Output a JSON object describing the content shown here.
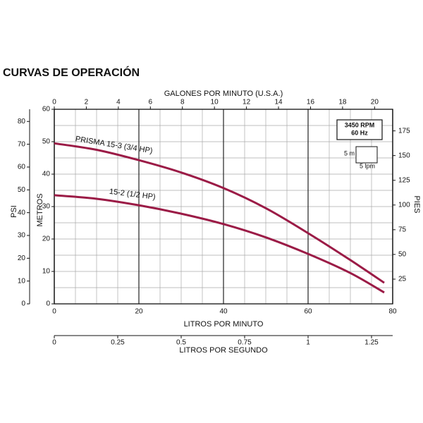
{
  "chart_data": {
    "type": "line",
    "title": "CURVAS DE OPERACIÓN",
    "xlabel": "LITROS POR MINUTO",
    "xlim": [
      0,
      80
    ],
    "xticks": [
      0,
      20,
      40,
      60,
      80
    ],
    "ylabel": "METROS",
    "ylim": [
      0,
      60
    ],
    "yticks": [
      0,
      10,
      20,
      30,
      40,
      50,
      60
    ],
    "grid": true,
    "gpm_axis": {
      "label": "GALONES POR MINUTO (U.S.A.)",
      "lim": [
        0,
        21.13
      ],
      "ticks": [
        0,
        2,
        4,
        6,
        8,
        10,
        12,
        14,
        16,
        18,
        20
      ]
    },
    "lps_axis": {
      "label": "LITROS POR SEGUNDO",
      "lim": [
        0,
        1.3333
      ],
      "ticks": [
        0,
        0.25,
        0.5,
        0.75,
        1,
        1.25
      ]
    },
    "psi_axis": {
      "label": "PSI",
      "lim": [
        0,
        85.34
      ],
      "ticks": [
        0,
        10,
        20,
        30,
        40,
        50,
        60,
        70,
        80
      ]
    },
    "ft_axis": {
      "label": "PIES",
      "lim": [
        0,
        196.85
      ],
      "ticks": [
        25,
        50,
        75,
        100,
        125,
        150,
        175
      ]
    },
    "rating": [
      "3450 RPM",
      "60 Hz"
    ],
    "scale_labels": [
      "5 m",
      "5 lpm"
    ],
    "x": [
      0,
      10,
      20,
      30,
      40,
      50,
      60,
      70,
      78
    ],
    "series": [
      {
        "name": "PRISMA 15-3 (3/4 HP)",
        "color": "#9b1b46",
        "values": [
          49.5,
          47.5,
          44.3,
          40.5,
          35.7,
          29.5,
          21.8,
          13.5,
          6.5
        ]
      },
      {
        "name": "15-2 (1/2 HP)",
        "color": "#9b1b46",
        "values": [
          33.5,
          32.4,
          30.4,
          27.8,
          24.6,
          20.5,
          15.4,
          9.5,
          3.5
        ]
      }
    ]
  }
}
